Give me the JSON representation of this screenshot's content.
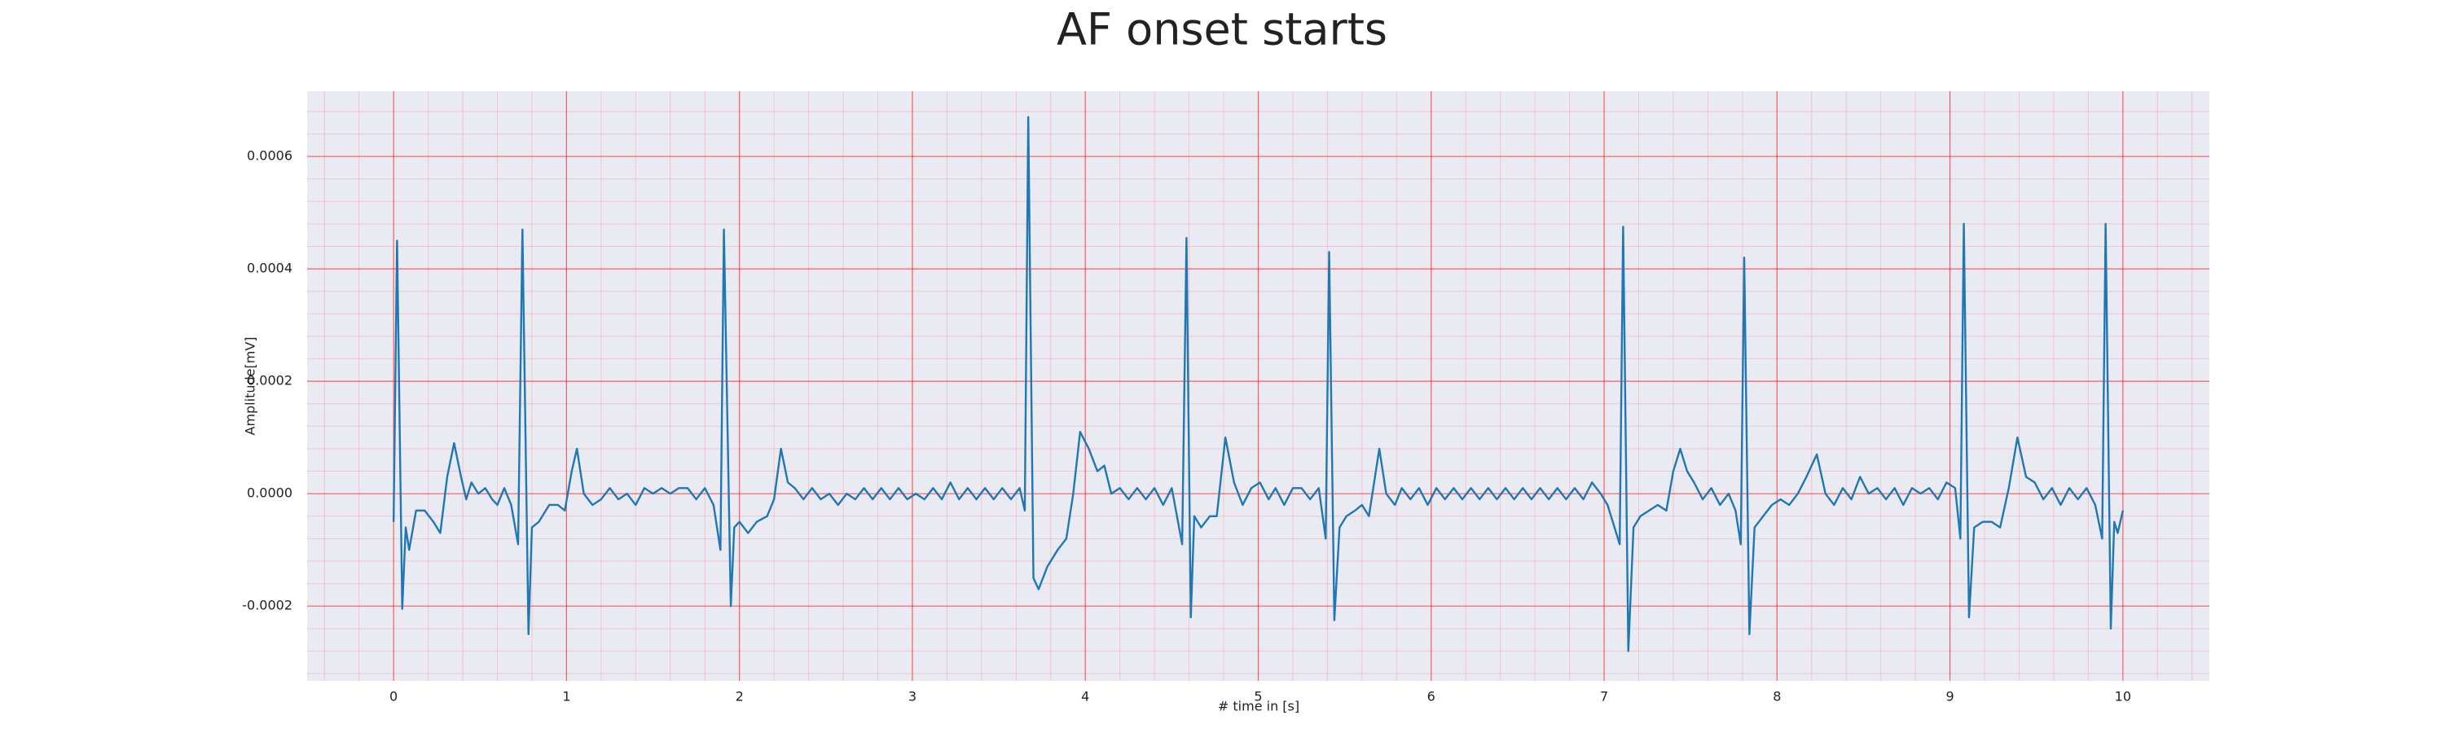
{
  "chart_data": {
    "type": "line",
    "title": "AF onset starts",
    "xlabel": "# time in [s]",
    "ylabel": "Amplitude[mV]",
    "x": [
      0.0,
      0.02,
      0.05,
      0.07,
      0.09,
      0.13,
      0.18,
      0.23,
      0.27,
      0.31,
      0.35,
      0.39,
      0.42,
      0.45,
      0.49,
      0.53,
      0.57,
      0.6,
      0.64,
      0.68,
      0.72,
      0.745,
      0.78,
      0.8,
      0.84,
      0.9,
      0.95,
      0.99,
      1.03,
      1.06,
      1.1,
      1.15,
      1.2,
      1.25,
      1.3,
      1.35,
      1.4,
      1.45,
      1.5,
      1.55,
      1.6,
      1.65,
      1.7,
      1.75,
      1.8,
      1.85,
      1.89,
      1.91,
      1.95,
      1.97,
      2.0,
      2.05,
      2.1,
      2.16,
      2.2,
      2.24,
      2.28,
      2.32,
      2.37,
      2.42,
      2.47,
      2.52,
      2.57,
      2.62,
      2.67,
      2.72,
      2.77,
      2.82,
      2.87,
      2.92,
      2.97,
      3.02,
      3.07,
      3.12,
      3.17,
      3.22,
      3.27,
      3.32,
      3.37,
      3.42,
      3.47,
      3.52,
      3.57,
      3.62,
      3.65,
      3.67,
      3.7,
      3.73,
      3.78,
      3.84,
      3.89,
      3.93,
      3.97,
      4.02,
      4.07,
      4.11,
      4.15,
      4.2,
      4.25,
      4.3,
      4.35,
      4.4,
      4.45,
      4.5,
      4.56,
      4.585,
      4.61,
      4.63,
      4.67,
      4.72,
      4.76,
      4.81,
      4.86,
      4.91,
      4.96,
      5.01,
      5.06,
      5.1,
      5.15,
      5.2,
      5.25,
      5.3,
      5.35,
      5.39,
      5.41,
      5.44,
      5.47,
      5.51,
      5.56,
      5.6,
      5.64,
      5.7,
      5.74,
      5.79,
      5.83,
      5.88,
      5.93,
      5.98,
      6.03,
      6.08,
      6.13,
      6.18,
      6.23,
      6.28,
      6.33,
      6.38,
      6.43,
      6.48,
      6.53,
      6.58,
      6.63,
      6.68,
      6.73,
      6.78,
      6.83,
      6.88,
      6.93,
      6.98,
      7.02,
      7.09,
      7.11,
      7.14,
      7.17,
      7.21,
      7.26,
      7.31,
      7.36,
      7.4,
      7.44,
      7.48,
      7.52,
      7.57,
      7.62,
      7.67,
      7.72,
      7.76,
      7.79,
      7.81,
      7.84,
      7.87,
      7.92,
      7.97,
      8.02,
      8.07,
      8.12,
      8.17,
      8.23,
      8.28,
      8.33,
      8.38,
      8.43,
      8.48,
      8.53,
      8.58,
      8.63,
      8.68,
      8.73,
      8.78,
      8.83,
      8.88,
      8.93,
      8.98,
      9.03,
      9.06,
      9.08,
      9.11,
      9.14,
      9.19,
      9.24,
      9.29,
      9.34,
      9.39,
      9.44,
      9.49,
      9.54,
      9.59,
      9.64,
      9.69,
      9.74,
      9.79,
      9.84,
      9.88,
      9.9,
      9.93,
      9.95,
      9.97,
      10.0
    ],
    "series": [
      {
        "color": "#1f77b4",
        "values": [
          -5e-05,
          0.00045,
          -0.000205,
          -6e-05,
          -0.0001,
          -3e-05,
          -3e-05,
          -5e-05,
          -7e-05,
          3e-05,
          9e-05,
          3e-05,
          -1e-05,
          2e-05,
          0.0,
          1e-05,
          -1e-05,
          -2e-05,
          1e-05,
          -2e-05,
          -9e-05,
          0.00047,
          -0.00025,
          -6e-05,
          -5e-05,
          -2e-05,
          -2e-05,
          -3e-05,
          4e-05,
          8e-05,
          0.0,
          -2e-05,
          -1e-05,
          1e-05,
          -1e-05,
          0.0,
          -2e-05,
          1e-05,
          0.0,
          1e-05,
          0.0,
          1e-05,
          1e-05,
          -1e-05,
          1e-05,
          -2e-05,
          -0.0001,
          0.00047,
          -0.0002,
          -6e-05,
          -5e-05,
          -7e-05,
          -5e-05,
          -4e-05,
          -1e-05,
          8e-05,
          2e-05,
          1e-05,
          -1e-05,
          1e-05,
          -1e-05,
          0.0,
          -2e-05,
          0.0,
          -1e-05,
          1e-05,
          -1e-05,
          1e-05,
          -1e-05,
          1e-05,
          -1e-05,
          0.0,
          -1e-05,
          1e-05,
          -1e-05,
          2e-05,
          -1e-05,
          1e-05,
          -1e-05,
          1e-05,
          -1e-05,
          1e-05,
          -1e-05,
          1e-05,
          -3e-05,
          0.00067,
          -0.00015,
          -0.00017,
          -0.00013,
          -0.0001,
          -8e-05,
          0.0,
          0.00011,
          8e-05,
          4e-05,
          5e-05,
          0.0,
          1e-05,
          -1e-05,
          1e-05,
          -1e-05,
          1e-05,
          -2e-05,
          1e-05,
          -9e-05,
          0.000455,
          -0.00022,
          -4e-05,
          -6e-05,
          -4e-05,
          -4e-05,
          0.0001,
          2e-05,
          -2e-05,
          1e-05,
          2e-05,
          -1e-05,
          1e-05,
          -2e-05,
          1e-05,
          1e-05,
          -1e-05,
          1e-05,
          -8e-05,
          0.00043,
          -0.000225,
          -6e-05,
          -4e-05,
          -3e-05,
          -2e-05,
          -4e-05,
          8e-05,
          0.0,
          -2e-05,
          1e-05,
          -1e-05,
          1e-05,
          -2e-05,
          1e-05,
          -1e-05,
          1e-05,
          -1e-05,
          1e-05,
          -1e-05,
          1e-05,
          -1e-05,
          1e-05,
          -1e-05,
          1e-05,
          -1e-05,
          1e-05,
          -1e-05,
          1e-05,
          -1e-05,
          1e-05,
          -1e-05,
          2e-05,
          0.0,
          -2e-05,
          -9e-05,
          0.000475,
          -0.00028,
          -6e-05,
          -4e-05,
          -3e-05,
          -2e-05,
          -3e-05,
          4e-05,
          8e-05,
          4e-05,
          2e-05,
          -1e-05,
          1e-05,
          -2e-05,
          0.0,
          -3e-05,
          -9e-05,
          0.00042,
          -0.00025,
          -6e-05,
          -4e-05,
          -2e-05,
          -1e-05,
          -2e-05,
          0.0,
          3e-05,
          7e-05,
          0.0,
          -2e-05,
          1e-05,
          -1e-05,
          3e-05,
          0.0,
          1e-05,
          -1e-05,
          1e-05,
          -2e-05,
          1e-05,
          0.0,
          1e-05,
          -1e-05,
          2e-05,
          1e-05,
          -8e-05,
          0.00048,
          -0.00022,
          -6e-05,
          -5e-05,
          -5e-05,
          -6e-05,
          1e-05,
          0.0001,
          3e-05,
          2e-05,
          -1e-05,
          1e-05,
          -2e-05,
          1e-05,
          -1e-05,
          1e-05,
          -2e-05,
          -8e-05,
          0.00048,
          -0.00024,
          -5e-05,
          -7e-05,
          -3e-05
        ]
      }
    ],
    "xlim": [
      -0.5,
      10.5
    ],
    "xticks": [
      0,
      1,
      2,
      3,
      4,
      5,
      6,
      7,
      8,
      9,
      10
    ],
    "ylim": [
      -0.000333,
      0.000716
    ],
    "yticks": [
      -0.0002,
      {
        "value": 0,
        "label": "0.0000"
      },
      0.0002,
      0.0004,
      0.0006
    ],
    "grid": true,
    "grid_color": "#ff0000",
    "minor_grid_divisions": 5,
    "background": "#eaeaf2"
  }
}
